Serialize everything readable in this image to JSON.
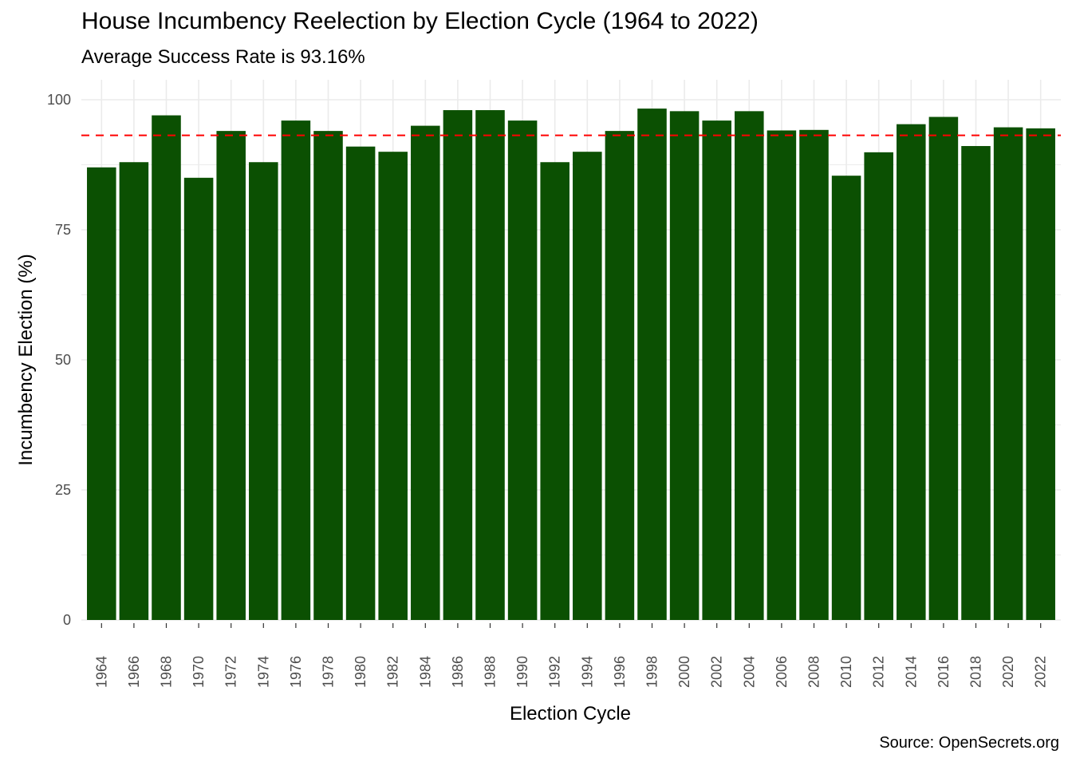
{
  "chart_data": {
    "type": "bar",
    "title": "House Incumbency Reelection by Election Cycle (1964 to 2022)",
    "subtitle": "Average Success Rate is 93.16%",
    "caption": "Source: OpenSecrets.org",
    "xlabel": "Election Cycle",
    "ylabel": "Incumbency Election (%)",
    "ylim": [
      0,
      100
    ],
    "yticks": [
      0,
      25,
      50,
      75,
      100
    ],
    "categories": [
      "1964",
      "1966",
      "1968",
      "1970",
      "1972",
      "1974",
      "1976",
      "1978",
      "1980",
      "1982",
      "1984",
      "1986",
      "1988",
      "1990",
      "1992",
      "1994",
      "1996",
      "1998",
      "2000",
      "2002",
      "2004",
      "2006",
      "2008",
      "2010",
      "2012",
      "2014",
      "2016",
      "2018",
      "2020",
      "2022"
    ],
    "values": [
      87,
      88,
      97,
      85,
      94,
      88,
      96,
      94,
      91,
      90,
      95,
      98,
      98,
      96,
      88,
      90,
      94,
      98.3,
      97.8,
      96,
      97.8,
      94.1,
      94.2,
      85.4,
      89.9,
      95.3,
      96.7,
      91.1,
      94.7,
      94.5
    ],
    "reference_line": {
      "value": 93.16,
      "style": "dashed"
    },
    "grid": true,
    "legend": "none",
    "colors": {
      "bar": "#0b5002",
      "reference_line": "#ff0000",
      "grid": "#ebebeb"
    }
  }
}
